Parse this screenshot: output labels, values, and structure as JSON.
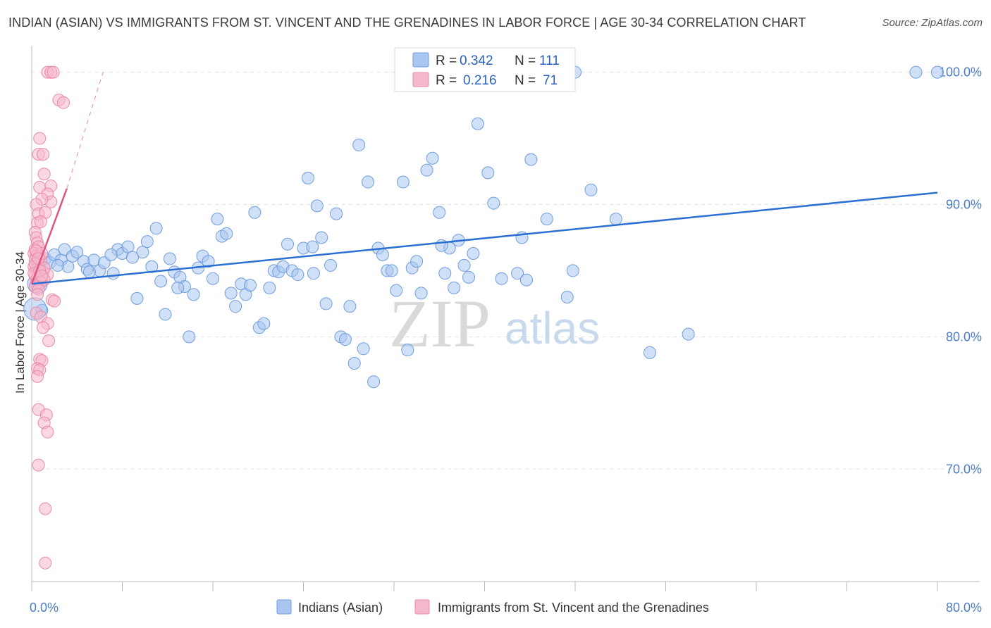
{
  "title": "INDIAN (ASIAN) VS IMMIGRANTS FROM ST. VINCENT AND THE GRENADINES IN LABOR FORCE | AGE 30-34 CORRELATION CHART",
  "source": "Source: ZipAtlas.com",
  "watermark": {
    "zip": "ZIP",
    "atlas": "atlas"
  },
  "legend_box": {
    "rows": [
      {
        "r_label": "R =",
        "r_value": "0.342",
        "n_label": "N =",
        "n_value": "111",
        "color": "#a9c6f0"
      },
      {
        "r_label": "R =",
        "r_value": "0.216",
        "n_label": "N =",
        "n_value": "71",
        "color": "#f5b8cb"
      }
    ]
  },
  "chart_data": {
    "type": "scatter",
    "ylabel": "In Labor Force | Age 30-34",
    "xlim": [
      0,
      80
    ],
    "ylim": [
      61.5,
      102
    ],
    "y_ticks": [
      {
        "value": 70,
        "label": "70.0%"
      },
      {
        "value": 80,
        "label": "80.0%"
      },
      {
        "value": 90,
        "label": "90.0%"
      },
      {
        "value": 100,
        "label": "100.0%"
      }
    ],
    "x_tick_labels": [
      {
        "value": 0,
        "label": "0.0%"
      },
      {
        "value": 80,
        "label": "80.0%"
      }
    ],
    "grid": "horizontal dashed",
    "series": [
      {
        "name": "Indians (Asian)",
        "color": "#a9c6f0",
        "stroke": "#6f9de0",
        "trend_color": "#2a6fd1",
        "trend": {
          "x1": 0,
          "y1": 84.0,
          "x2": 80,
          "y2": 90.9
        },
        "points": [
          [
            1.2,
            85.9
          ],
          [
            1.6,
            85.6
          ],
          [
            2.0,
            86.2
          ],
          [
            2.6,
            85.8
          ],
          [
            2.9,
            86.6
          ],
          [
            3.2,
            85.3
          ],
          [
            3.6,
            86.1
          ],
          [
            4.0,
            86.4
          ],
          [
            4.6,
            85.7
          ],
          [
            4.9,
            85.1
          ],
          [
            5.5,
            85.8
          ],
          [
            6.0,
            85.0
          ],
          [
            6.4,
            85.6
          ],
          [
            7.2,
            84.8
          ],
          [
            7.6,
            86.6
          ],
          [
            8.0,
            86.3
          ],
          [
            8.5,
            86.8
          ],
          [
            8.9,
            86.0
          ],
          [
            9.3,
            82.9
          ],
          [
            9.8,
            86.4
          ],
          [
            10.2,
            87.2
          ],
          [
            10.6,
            85.3
          ],
          [
            11.0,
            88.2
          ],
          [
            11.4,
            84.2
          ],
          [
            11.8,
            81.7
          ],
          [
            12.2,
            85.9
          ],
          [
            12.6,
            84.9
          ],
          [
            13.1,
            84.5
          ],
          [
            13.5,
            83.8
          ],
          [
            13.9,
            80.0
          ],
          [
            14.3,
            83.2
          ],
          [
            14.7,
            85.2
          ],
          [
            15.1,
            86.1
          ],
          [
            15.6,
            85.7
          ],
          [
            16.0,
            84.4
          ],
          [
            16.4,
            88.9
          ],
          [
            16.8,
            87.6
          ],
          [
            17.2,
            87.8
          ],
          [
            17.6,
            83.3
          ],
          [
            18.0,
            82.3
          ],
          [
            18.5,
            84.0
          ],
          [
            18.9,
            83.2
          ],
          [
            19.3,
            83.9
          ],
          [
            19.7,
            89.4
          ],
          [
            20.1,
            80.7
          ],
          [
            20.5,
            81.0
          ],
          [
            21.0,
            83.7
          ],
          [
            21.4,
            85.0
          ],
          [
            21.8,
            84.9
          ],
          [
            22.2,
            85.3
          ],
          [
            22.6,
            87.0
          ],
          [
            23.0,
            85.0
          ],
          [
            23.5,
            84.7
          ],
          [
            24.0,
            86.7
          ],
          [
            24.4,
            92.0
          ],
          [
            24.8,
            86.8
          ],
          [
            25.2,
            89.9
          ],
          [
            25.6,
            87.5
          ],
          [
            26.0,
            82.5
          ],
          [
            26.4,
            85.4
          ],
          [
            26.9,
            89.3
          ],
          [
            27.3,
            80.0
          ],
          [
            27.7,
            79.8
          ],
          [
            28.1,
            82.3
          ],
          [
            28.5,
            78.0
          ],
          [
            28.9,
            94.5
          ],
          [
            29.3,
            79.1
          ],
          [
            29.7,
            91.7
          ],
          [
            30.2,
            76.6
          ],
          [
            30.6,
            86.7
          ],
          [
            31.0,
            86.2
          ],
          [
            31.4,
            85.0
          ],
          [
            31.8,
            85.0
          ],
          [
            32.2,
            83.5
          ],
          [
            32.8,
            91.7
          ],
          [
            33.2,
            79.0
          ],
          [
            33.6,
            85.2
          ],
          [
            34.0,
            85.7
          ],
          [
            34.4,
            83.3
          ],
          [
            34.9,
            92.6
          ],
          [
            35.4,
            93.5
          ],
          [
            36.0,
            89.4
          ],
          [
            36.5,
            84.8
          ],
          [
            36.9,
            86.7
          ],
          [
            37.3,
            83.7
          ],
          [
            37.7,
            87.3
          ],
          [
            38.2,
            85.4
          ],
          [
            38.6,
            84.5
          ],
          [
            39.0,
            86.3
          ],
          [
            39.4,
            96.1
          ],
          [
            40.3,
            92.4
          ],
          [
            40.8,
            90.1
          ],
          [
            41.5,
            84.4
          ],
          [
            42.9,
            84.8
          ],
          [
            43.3,
            87.5
          ],
          [
            43.7,
            84.3
          ],
          [
            44.1,
            93.4
          ],
          [
            45.5,
            88.9
          ],
          [
            47.3,
            83.0
          ],
          [
            47.8,
            85.0
          ],
          [
            49.4,
            91.1
          ],
          [
            51.6,
            88.9
          ],
          [
            54.6,
            78.8
          ],
          [
            58.0,
            80.2
          ],
          [
            0.5,
            83.8
          ],
          [
            0.9,
            82.0
          ],
          [
            2.3,
            85.4
          ],
          [
            5.1,
            84.9
          ],
          [
            7.0,
            86.2
          ],
          [
            48.0,
            100.0
          ],
          [
            78.1,
            100.0
          ],
          [
            80.0,
            100.0
          ],
          [
            12.9,
            83.7
          ],
          [
            24.9,
            84.8
          ],
          [
            36.2,
            86.9
          ]
        ]
      },
      {
        "name": "Immigrants from St. Vincent and the Grenadines",
        "color": "#f5b8cb",
        "stroke": "#e98aa8",
        "trend_color": "#e05585",
        "trend": {
          "x1": 0,
          "y1": 84.0,
          "x2": 3.1,
          "y2": 91.2
        },
        "trend_dashed": {
          "x1": 3.1,
          "y1": 91.2,
          "x2": 6.3,
          "y2": 100.0
        },
        "points": [
          [
            1.4,
            100.0
          ],
          [
            1.7,
            100.0
          ],
          [
            1.9,
            100.0
          ],
          [
            2.4,
            97.9
          ],
          [
            2.8,
            97.7
          ],
          [
            0.7,
            95.0
          ],
          [
            0.6,
            93.8
          ],
          [
            1.0,
            93.8
          ],
          [
            1.1,
            92.3
          ],
          [
            0.7,
            91.3
          ],
          [
            1.7,
            91.4
          ],
          [
            1.4,
            90.8
          ],
          [
            1.7,
            90.2
          ],
          [
            0.9,
            90.4
          ],
          [
            0.4,
            90.0
          ],
          [
            0.6,
            89.3
          ],
          [
            1.2,
            89.4
          ],
          [
            0.5,
            88.6
          ],
          [
            0.8,
            88.7
          ],
          [
            0.3,
            87.9
          ],
          [
            0.4,
            87.5
          ],
          [
            0.5,
            87.1
          ],
          [
            0.3,
            86.6
          ],
          [
            0.6,
            86.8
          ],
          [
            0.2,
            86.3
          ],
          [
            0.4,
            86.1
          ],
          [
            0.6,
            86.0
          ],
          [
            0.3,
            85.8
          ],
          [
            0.5,
            85.6
          ],
          [
            0.8,
            85.8
          ],
          [
            0.2,
            85.3
          ],
          [
            0.4,
            85.1
          ],
          [
            0.6,
            84.9
          ],
          [
            1.0,
            84.9
          ],
          [
            1.4,
            84.7
          ],
          [
            0.3,
            84.6
          ],
          [
            0.5,
            84.4
          ],
          [
            0.7,
            84.3
          ],
          [
            1.1,
            84.3
          ],
          [
            0.4,
            84.0
          ],
          [
            0.8,
            84.1
          ],
          [
            0.3,
            83.8
          ],
          [
            0.6,
            83.6
          ],
          [
            1.8,
            82.8
          ],
          [
            2.0,
            82.7
          ],
          [
            0.4,
            81.8
          ],
          [
            0.8,
            81.5
          ],
          [
            1.4,
            81.0
          ],
          [
            1.0,
            80.7
          ],
          [
            1.5,
            79.7
          ],
          [
            0.7,
            78.3
          ],
          [
            0.9,
            78.2
          ],
          [
            0.5,
            77.6
          ],
          [
            0.7,
            77.5
          ],
          [
            0.5,
            77.0
          ],
          [
            0.6,
            74.5
          ],
          [
            1.3,
            74.1
          ],
          [
            1.1,
            73.5
          ],
          [
            1.4,
            72.8
          ],
          [
            0.6,
            70.3
          ],
          [
            1.2,
            67.0
          ],
          [
            1.2,
            62.9
          ],
          [
            0.3,
            85.5
          ],
          [
            0.9,
            86.3
          ],
          [
            0.2,
            84.8
          ],
          [
            1.1,
            85.2
          ],
          [
            0.5,
            83.2
          ],
          [
            0.7,
            85.0
          ],
          [
            0.4,
            86.5
          ],
          [
            0.9,
            84.6
          ],
          [
            0.6,
            85.9
          ]
        ]
      }
    ]
  }
}
